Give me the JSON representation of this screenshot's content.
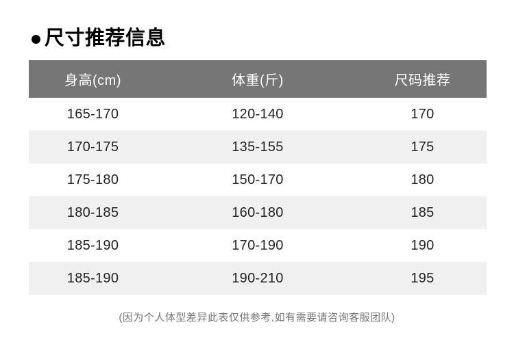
{
  "page": {
    "title": "尺寸推荐信息"
  },
  "colors": {
    "title_text": "#000000",
    "header_bg": "#767676",
    "header_text": "#ffffff",
    "row_bg": "#ffffff",
    "row_stripe_bg": "#f0f0f0",
    "body_text": "#222222",
    "footer_text": "#737373"
  },
  "table": {
    "columns": [
      "身高(cm)",
      "体重(斤)",
      "尺码推荐"
    ],
    "rows": [
      [
        "165-170",
        "120-140",
        "170"
      ],
      [
        "170-175",
        "135-155",
        "175"
      ],
      [
        "175-180",
        "150-170",
        "180"
      ],
      [
        "180-185",
        "160-180",
        "185"
      ],
      [
        "185-190",
        "170-190",
        "190"
      ],
      [
        "185-190",
        "190-210",
        "195"
      ]
    ]
  },
  "footer": {
    "note": "(因为个人体型差异此表仅供参考,如有需要请咨询客服团队)"
  }
}
